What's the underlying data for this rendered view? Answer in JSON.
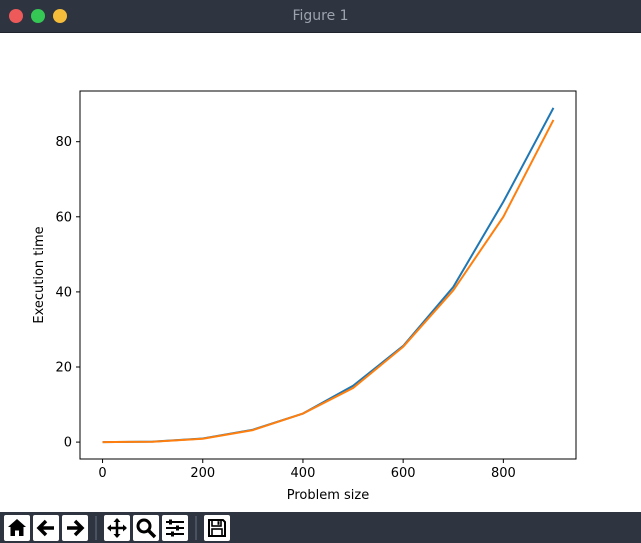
{
  "window": {
    "title": "Figure 1"
  },
  "chart_data": {
    "type": "line",
    "title": "",
    "xlabel": "Problem size",
    "ylabel": "Execution time",
    "xlim": [
      -45,
      945
    ],
    "ylim": [
      -4.5,
      93.5
    ],
    "xticks": [
      0,
      200,
      400,
      600,
      800
    ],
    "yticks": [
      0,
      20,
      40,
      60,
      80
    ],
    "grid": false,
    "x": [
      0,
      100,
      200,
      300,
      400,
      500,
      600,
      700,
      800,
      900
    ],
    "series": [
      {
        "color": "#1f77b4",
        "values": [
          0.0,
          0.12,
          0.95,
          3.3,
          7.6,
          15.0,
          25.6,
          41.3,
          64.0,
          89.0
        ]
      },
      {
        "color": "#ff7f0e",
        "values": [
          0.0,
          0.1,
          0.9,
          3.2,
          7.6,
          14.4,
          25.4,
          40.4,
          60.0,
          85.8
        ]
      }
    ]
  },
  "toolbar": {
    "tools": [
      "home-icon",
      "back-arrow-icon",
      "forward-arrow-icon",
      "pan-icon",
      "zoom-icon",
      "configure-subplots-icon",
      "save-icon"
    ]
  }
}
